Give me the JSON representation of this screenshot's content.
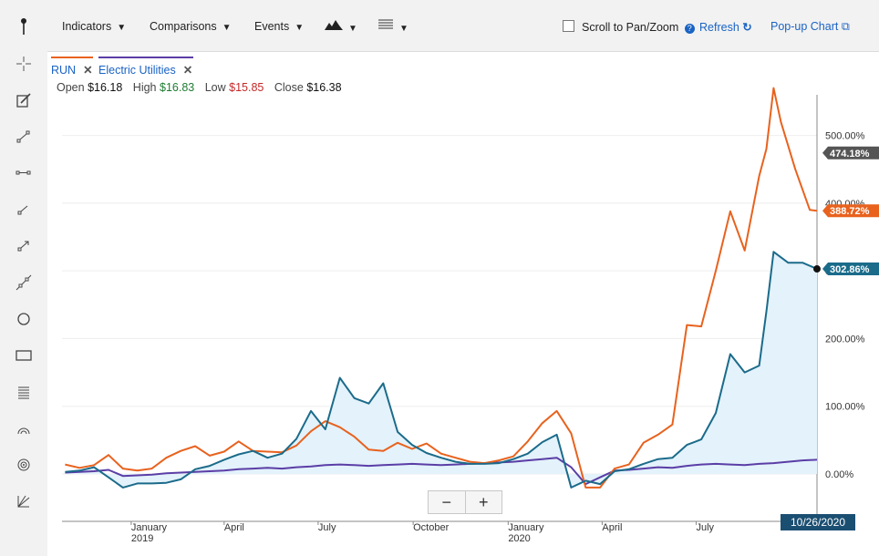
{
  "toolbar": {
    "indicators": "Indicators",
    "comparisons": "Comparisons",
    "events": "Events",
    "scroll_label": "Scroll to Pan/Zoom",
    "refresh": "Refresh",
    "popup": "Pop-up Chart"
  },
  "legend": {
    "run_label": "RUN",
    "eu_label": "Electric Utilities"
  },
  "ohlc": {
    "open_label": "Open",
    "open": "$16.18",
    "high_label": "High",
    "high": "$16.83",
    "low_label": "Low",
    "low": "$15.85",
    "close_label": "Close",
    "close": "$16.38"
  },
  "zoom": {
    "minus": "−",
    "plus": "+"
  },
  "date_label": "10/26/2020",
  "colors": {
    "run": "#e8621e",
    "comparison": "#1b6b8a",
    "electric": "#5b3ea6",
    "area": "#e3f2fb"
  },
  "chart_data": {
    "type": "line",
    "ylim": [
      -70,
      560
    ],
    "y_ticks": [
      0,
      100,
      200,
      300,
      400,
      500
    ],
    "y_tick_labels": [
      "0.00%",
      "100.00%",
      "200.00%",
      "300.00%",
      "400.00%",
      "500.00%"
    ],
    "x_ticks": [
      {
        "x": "2019-01-01",
        "label": "January",
        "sub": "2019"
      },
      {
        "x": "2019-04-01",
        "label": "April",
        "sub": ""
      },
      {
        "x": "2019-07-01",
        "label": "July",
        "sub": ""
      },
      {
        "x": "2019-10-01",
        "label": "October",
        "sub": ""
      },
      {
        "x": "2020-01-01",
        "label": "January",
        "sub": "2020"
      },
      {
        "x": "2020-04-01",
        "label": "April",
        "sub": ""
      },
      {
        "x": "2020-07-01",
        "label": "July",
        "sub": ""
      }
    ],
    "x_range": [
      "2018-10-26",
      "2020-10-26"
    ],
    "last_labels": [
      {
        "series": "RUN",
        "text": "474.18%",
        "value": 474.18,
        "color": "#555555"
      },
      {
        "series": "RUN",
        "text": "388.72%",
        "value": 388.72,
        "color": "#e8621e"
      },
      {
        "series": "",
        "text": "302.86%",
        "value": 302.86,
        "color": "#1b6b8a"
      }
    ],
    "series": [
      {
        "name": "RUN",
        "color": "#e8621e",
        "points": [
          [
            "2018-10-29",
            14
          ],
          [
            "2018-11-12",
            9
          ],
          [
            "2018-11-26",
            13
          ],
          [
            "2018-12-10",
            28
          ],
          [
            "2018-12-24",
            8
          ],
          [
            "2019-01-07",
            5
          ],
          [
            "2019-01-21",
            8
          ],
          [
            "2019-02-04",
            24
          ],
          [
            "2019-02-18",
            34
          ],
          [
            "2019-03-04",
            41
          ],
          [
            "2019-03-18",
            27
          ],
          [
            "2019-04-01",
            33
          ],
          [
            "2019-04-15",
            48
          ],
          [
            "2019-04-29",
            34
          ],
          [
            "2019-05-13",
            33
          ],
          [
            "2019-05-27",
            32
          ],
          [
            "2019-06-10",
            42
          ],
          [
            "2019-06-24",
            63
          ],
          [
            "2019-07-08",
            78
          ],
          [
            "2019-07-22",
            69
          ],
          [
            "2019-08-05",
            55
          ],
          [
            "2019-08-19",
            36
          ],
          [
            "2019-09-02",
            34
          ],
          [
            "2019-09-16",
            46
          ],
          [
            "2019-09-30",
            37
          ],
          [
            "2019-10-14",
            45
          ],
          [
            "2019-10-28",
            30
          ],
          [
            "2019-11-11",
            24
          ],
          [
            "2019-11-25",
            18
          ],
          [
            "2019-12-09",
            16
          ],
          [
            "2019-12-23",
            20
          ],
          [
            "2020-01-06",
            26
          ],
          [
            "2020-01-20",
            48
          ],
          [
            "2020-02-03",
            75
          ],
          [
            "2020-02-17",
            93
          ],
          [
            "2020-03-02",
            60
          ],
          [
            "2020-03-16",
            -20
          ],
          [
            "2020-03-30",
            -20
          ],
          [
            "2020-04-13",
            8
          ],
          [
            "2020-04-27",
            14
          ],
          [
            "2020-05-11",
            46
          ],
          [
            "2020-05-25",
            58
          ],
          [
            "2020-06-08",
            73
          ],
          [
            "2020-06-22",
            220
          ],
          [
            "2020-07-06",
            218
          ],
          [
            "2020-07-20",
            300
          ],
          [
            "2020-08-03",
            388
          ],
          [
            "2020-08-17",
            330
          ],
          [
            "2020-08-31",
            440
          ],
          [
            "2020-09-07",
            480
          ],
          [
            "2020-09-14",
            570
          ],
          [
            "2020-09-21",
            520
          ],
          [
            "2020-10-05",
            450
          ],
          [
            "2020-10-19",
            390
          ],
          [
            "2020-10-26",
            388.72
          ]
        ]
      },
      {
        "name": "",
        "color": "#1b6b8a",
        "points": [
          [
            "2018-10-29",
            3
          ],
          [
            "2018-11-12",
            5
          ],
          [
            "2018-11-26",
            10
          ],
          [
            "2018-12-10",
            -5
          ],
          [
            "2018-12-24",
            -20
          ],
          [
            "2019-01-07",
            -14
          ],
          [
            "2019-01-21",
            -14
          ],
          [
            "2019-02-04",
            -13
          ],
          [
            "2019-02-18",
            -8
          ],
          [
            "2019-03-04",
            7
          ],
          [
            "2019-03-18",
            12
          ],
          [
            "2019-04-01",
            21
          ],
          [
            "2019-04-15",
            29
          ],
          [
            "2019-04-29",
            34
          ],
          [
            "2019-05-13",
            24
          ],
          [
            "2019-05-27",
            30
          ],
          [
            "2019-06-10",
            52
          ],
          [
            "2019-06-24",
            93
          ],
          [
            "2019-07-08",
            66
          ],
          [
            "2019-07-22",
            142
          ],
          [
            "2019-08-05",
            112
          ],
          [
            "2019-08-19",
            104
          ],
          [
            "2019-09-02",
            134
          ],
          [
            "2019-09-16",
            62
          ],
          [
            "2019-09-30",
            43
          ],
          [
            "2019-10-14",
            31
          ],
          [
            "2019-10-28",
            24
          ],
          [
            "2019-11-11",
            18
          ],
          [
            "2019-11-25",
            15
          ],
          [
            "2019-12-09",
            15
          ],
          [
            "2019-12-23",
            16
          ],
          [
            "2020-01-06",
            22
          ],
          [
            "2020-01-20",
            30
          ],
          [
            "2020-02-03",
            47
          ],
          [
            "2020-02-17",
            58
          ],
          [
            "2020-03-02",
            -20
          ],
          [
            "2020-03-16",
            -10
          ],
          [
            "2020-03-30",
            -15
          ],
          [
            "2020-04-13",
            4
          ],
          [
            "2020-04-27",
            7
          ],
          [
            "2020-05-11",
            15
          ],
          [
            "2020-05-25",
            22
          ],
          [
            "2020-06-08",
            24
          ],
          [
            "2020-06-22",
            43
          ],
          [
            "2020-07-06",
            51
          ],
          [
            "2020-07-20",
            90
          ],
          [
            "2020-08-03",
            177
          ],
          [
            "2020-08-17",
            150
          ],
          [
            "2020-08-31",
            160
          ],
          [
            "2020-09-07",
            240
          ],
          [
            "2020-09-14",
            328
          ],
          [
            "2020-09-28",
            312
          ],
          [
            "2020-10-12",
            312
          ],
          [
            "2020-10-26",
            302.86
          ]
        ]
      },
      {
        "name": "Electric Utilities",
        "color": "#5b3ea6",
        "points": [
          [
            "2018-10-29",
            2
          ],
          [
            "2018-11-12",
            3
          ],
          [
            "2018-11-26",
            4
          ],
          [
            "2018-12-10",
            6
          ],
          [
            "2018-12-24",
            -3
          ],
          [
            "2019-01-07",
            -2
          ],
          [
            "2019-01-21",
            -1
          ],
          [
            "2019-02-04",
            1
          ],
          [
            "2019-02-18",
            2
          ],
          [
            "2019-03-04",
            3
          ],
          [
            "2019-03-18",
            4
          ],
          [
            "2019-04-01",
            5
          ],
          [
            "2019-04-15",
            7
          ],
          [
            "2019-04-29",
            8
          ],
          [
            "2019-05-13",
            9
          ],
          [
            "2019-05-27",
            8
          ],
          [
            "2019-06-10",
            10
          ],
          [
            "2019-06-24",
            11
          ],
          [
            "2019-07-08",
            13
          ],
          [
            "2019-07-22",
            14
          ],
          [
            "2019-08-05",
            13
          ],
          [
            "2019-08-19",
            12
          ],
          [
            "2019-09-02",
            13
          ],
          [
            "2019-09-16",
            14
          ],
          [
            "2019-09-30",
            15
          ],
          [
            "2019-10-14",
            14
          ],
          [
            "2019-10-28",
            13
          ],
          [
            "2019-11-11",
            14
          ],
          [
            "2019-11-25",
            15
          ],
          [
            "2019-12-09",
            16
          ],
          [
            "2019-12-23",
            17
          ],
          [
            "2020-01-06",
            18
          ],
          [
            "2020-01-20",
            20
          ],
          [
            "2020-02-03",
            22
          ],
          [
            "2020-02-17",
            24
          ],
          [
            "2020-03-02",
            10
          ],
          [
            "2020-03-16",
            -15
          ],
          [
            "2020-03-30",
            -5
          ],
          [
            "2020-04-13",
            5
          ],
          [
            "2020-04-27",
            6
          ],
          [
            "2020-05-11",
            8
          ],
          [
            "2020-05-25",
            10
          ],
          [
            "2020-06-08",
            9
          ],
          [
            "2020-06-22",
            12
          ],
          [
            "2020-07-06",
            14
          ],
          [
            "2020-07-20",
            15
          ],
          [
            "2020-08-03",
            14
          ],
          [
            "2020-08-17",
            13
          ],
          [
            "2020-08-31",
            15
          ],
          [
            "2020-09-14",
            16
          ],
          [
            "2020-09-28",
            18
          ],
          [
            "2020-10-12",
            20
          ],
          [
            "2020-10-26",
            21
          ]
        ]
      }
    ]
  }
}
